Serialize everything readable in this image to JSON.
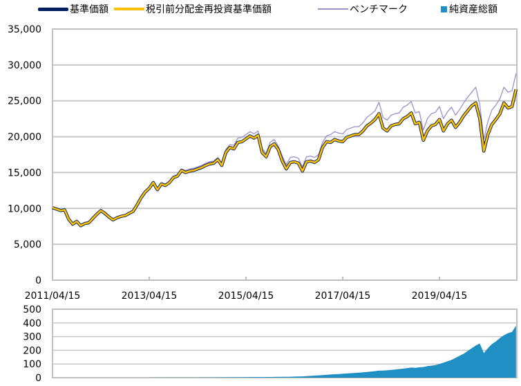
{
  "chart_data": [
    {
      "type": "line",
      "legend": [
        {
          "name": "基準価額",
          "color": "#002060"
        },
        {
          "name": "税引前分配金再投資基準価額",
          "color": "#FFC000"
        },
        {
          "name": "ベンチマーク",
          "color": "#9A8FCB"
        }
      ],
      "legend_placement": "top",
      "ylim": [
        0,
        35000
      ],
      "yticks": [
        "0",
        "5,000",
        "10,000",
        "15,000",
        "20,000",
        "25,000",
        "30,000",
        "35,000"
      ],
      "ytick_values": [
        0,
        5000,
        10000,
        15000,
        20000,
        25000,
        30000,
        35000
      ],
      "xticks": [
        "2011/04/15",
        "2013/04/15",
        "2015/04/15",
        "2017/04/15",
        "2019/04/15"
      ],
      "x_start": "2011/04",
      "x_end": "2020/11",
      "grid": true,
      "x": [
        "2011/04",
        "2011/05",
        "2011/06",
        "2011/07",
        "2011/08",
        "2011/09",
        "2011/10",
        "2011/11",
        "2011/12",
        "2012/01",
        "2012/02",
        "2012/03",
        "2012/04",
        "2012/05",
        "2012/06",
        "2012/07",
        "2012/08",
        "2012/09",
        "2012/10",
        "2012/11",
        "2012/12",
        "2013/01",
        "2013/02",
        "2013/03",
        "2013/04",
        "2013/05",
        "2013/06",
        "2013/07",
        "2013/08",
        "2013/09",
        "2013/10",
        "2013/11",
        "2013/12",
        "2014/01",
        "2014/02",
        "2014/03",
        "2014/04",
        "2014/05",
        "2014/06",
        "2014/07",
        "2014/08",
        "2014/09",
        "2014/10",
        "2014/11",
        "2014/12",
        "2015/01",
        "2015/02",
        "2015/03",
        "2015/04",
        "2015/05",
        "2015/06",
        "2015/07",
        "2015/08",
        "2015/09",
        "2015/10",
        "2015/11",
        "2015/12",
        "2016/01",
        "2016/02",
        "2016/03",
        "2016/04",
        "2016/05",
        "2016/06",
        "2016/07",
        "2016/08",
        "2016/09",
        "2016/10",
        "2016/11",
        "2016/12",
        "2017/01",
        "2017/02",
        "2017/03",
        "2017/04",
        "2017/05",
        "2017/06",
        "2017/07",
        "2017/08",
        "2017/09",
        "2017/10",
        "2017/11",
        "2017/12",
        "2018/01",
        "2018/02",
        "2018/03",
        "2018/04",
        "2018/05",
        "2018/06",
        "2018/07",
        "2018/08",
        "2018/09",
        "2018/10",
        "2018/11",
        "2018/12",
        "2019/01",
        "2019/02",
        "2019/03",
        "2019/04",
        "2019/05",
        "2019/06",
        "2019/07",
        "2019/08",
        "2019/09",
        "2019/10",
        "2019/11",
        "2019/12",
        "2020/01",
        "2020/02",
        "2020/03",
        "2020/04",
        "2020/05",
        "2020/06",
        "2020/07",
        "2020/08",
        "2020/09",
        "2020/10",
        "2020/11"
      ],
      "series": [
        {
          "name": "ベンチマーク",
          "values": [
            10200,
            10000,
            9800,
            9900,
            8600,
            7900,
            8300,
            7700,
            8000,
            8100,
            8700,
            9300,
            9800,
            9400,
            8900,
            8500,
            8800,
            9000,
            9100,
            9400,
            9700,
            10700,
            11700,
            12500,
            13000,
            13800,
            12800,
            13600,
            13400,
            13800,
            14500,
            14700,
            15500,
            15300,
            15500,
            15600,
            15800,
            16000,
            16300,
            16500,
            16600,
            17100,
            16300,
            18200,
            18900,
            18800,
            19800,
            19900,
            20300,
            20700,
            20400,
            20800,
            18300,
            17700,
            19200,
            19600,
            18700,
            17300,
            16100,
            17100,
            17200,
            17000,
            15800,
            17200,
            17300,
            17100,
            17500,
            19200,
            20100,
            20300,
            20700,
            20500,
            20400,
            21000,
            21200,
            21400,
            21400,
            21900,
            22700,
            23100,
            23600,
            24800,
            22700,
            22300,
            23000,
            23200,
            23300,
            24100,
            24400,
            24900,
            23300,
            23500,
            20900,
            22500,
            23200,
            23400,
            24200,
            22500,
            23500,
            24100,
            23000,
            23800,
            24700,
            25500,
            26200,
            26900,
            24500,
            19600,
            22100,
            23700,
            24400,
            25300,
            26900,
            26200,
            26400,
            28800
          ]
        },
        {
          "name": "基準価額",
          "values": [
            10100,
            9900,
            9700,
            9800,
            8500,
            7800,
            8200,
            7600,
            7900,
            8000,
            8600,
            9200,
            9700,
            9300,
            8800,
            8400,
            8700,
            8900,
            9000,
            9300,
            9600,
            10500,
            11500,
            12300,
            12800,
            13600,
            12600,
            13400,
            13200,
            13600,
            14300,
            14500,
            15300,
            15000,
            15200,
            15300,
            15500,
            15700,
            16000,
            16200,
            16300,
            16800,
            16000,
            17800,
            18500,
            18300,
            19200,
            19300,
            19700,
            20100,
            19800,
            20200,
            17800,
            17200,
            18600,
            19000,
            18200,
            16600,
            15500,
            16400,
            16500,
            16300,
            15200,
            16500,
            16600,
            16400,
            16800,
            18500,
            19300,
            19200,
            19600,
            19400,
            19300,
            19900,
            20100,
            20300,
            20300,
            20800,
            21500,
            21900,
            22400,
            23200,
            21200,
            20800,
            21500,
            21700,
            21800,
            22500,
            22800,
            23300,
            21800,
            22000,
            19500,
            20800,
            21500,
            21700,
            22400,
            20800,
            21800,
            22300,
            21300,
            22000,
            22900,
            23600,
            24300,
            24700,
            22500,
            18000,
            20300,
            21700,
            22400,
            23200,
            24700,
            24000,
            24200,
            26600
          ]
        },
        {
          "name": "税引前分配金再投資基準価額",
          "values": [
            10100,
            9900,
            9700,
            9800,
            8500,
            7800,
            8200,
            7600,
            7900,
            8000,
            8600,
            9200,
            9700,
            9300,
            8800,
            8400,
            8700,
            8900,
            9000,
            9300,
            9600,
            10500,
            11500,
            12300,
            12800,
            13600,
            12600,
            13400,
            13200,
            13600,
            14300,
            14500,
            15300,
            15000,
            15200,
            15300,
            15500,
            15700,
            16000,
            16200,
            16300,
            16800,
            16000,
            17800,
            18500,
            18300,
            19200,
            19300,
            19700,
            20100,
            19800,
            20200,
            17800,
            17200,
            18600,
            19000,
            18200,
            16600,
            15500,
            16400,
            16500,
            16300,
            15200,
            16500,
            16600,
            16400,
            16800,
            18500,
            19300,
            19200,
            19600,
            19400,
            19300,
            19900,
            20100,
            20300,
            20300,
            20800,
            21500,
            21900,
            22400,
            23200,
            21200,
            20800,
            21500,
            21700,
            21800,
            22500,
            22800,
            23300,
            21800,
            22000,
            19500,
            20800,
            21500,
            21700,
            22400,
            20800,
            21800,
            22300,
            21300,
            22000,
            22900,
            23600,
            24300,
            24700,
            22500,
            18000,
            20300,
            21700,
            22400,
            23200,
            24700,
            24000,
            24200,
            26600
          ]
        }
      ]
    },
    {
      "type": "area",
      "legend": [
        {
          "name": "純資産総額",
          "color": "#1F8FC4"
        }
      ],
      "ylim": [
        0,
        500
      ],
      "yticks": [
        "0",
        "100",
        "200",
        "300",
        "400",
        "500"
      ],
      "ytick_values": [
        0,
        100,
        200,
        300,
        400,
        500
      ],
      "grid": true,
      "series": [
        {
          "name": "純資産総額",
          "values": [
            0,
            0,
            0,
            0,
            0,
            0,
            0,
            0,
            0,
            0,
            0,
            0,
            0,
            0,
            0,
            0,
            0,
            0,
            0,
            0,
            0,
            0,
            0,
            0,
            0.5,
            0.6,
            0.7,
            0.8,
            0.9,
            1,
            1,
            1.2,
            1.3,
            1.4,
            1.5,
            1.6,
            1.7,
            1.8,
            2,
            2.1,
            2.2,
            2.4,
            2.5,
            2.8,
            3,
            3.2,
            3.5,
            3.8,
            4,
            4.3,
            4.5,
            4.8,
            4.6,
            4.8,
            5.2,
            5.5,
            6,
            6,
            6.5,
            7,
            8,
            9,
            9.5,
            11,
            13,
            15,
            17,
            19,
            21,
            23,
            25,
            27,
            29,
            31,
            33,
            35,
            37,
            39,
            42,
            45,
            48,
            52,
            52,
            54,
            57,
            60,
            63,
            66,
            70,
            74,
            72,
            76,
            78,
            85,
            88,
            92,
            100,
            110,
            120,
            130,
            145,
            160,
            175,
            195,
            215,
            235,
            250,
            180,
            215,
            245,
            265,
            290,
            310,
            325,
            335,
            380
          ]
        }
      ]
    }
  ]
}
